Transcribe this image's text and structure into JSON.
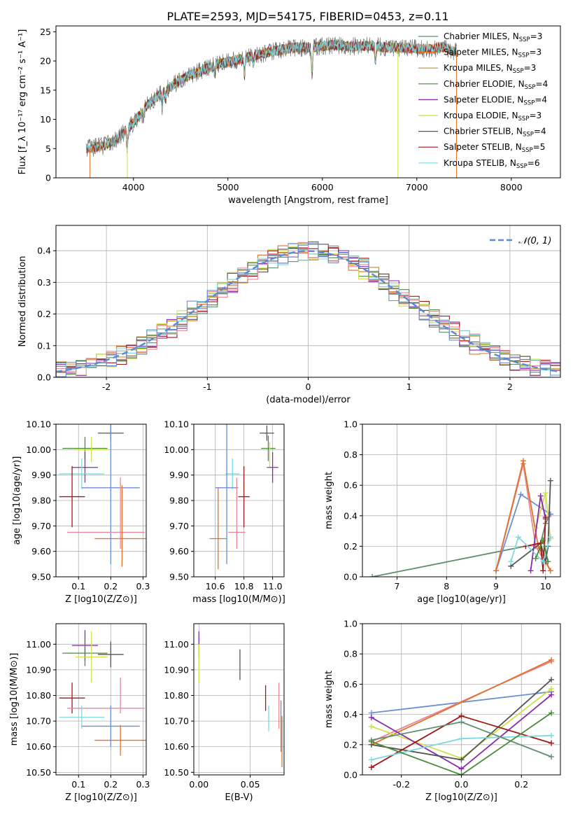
{
  "figure_title": "PLATE=2593, MJD=54175, FIBERID=0453, z=0.11",
  "chart_data": [
    {
      "id": "spectrum",
      "type": "line",
      "title": "PLATE=2593, MJD=54175, FIBERID=0453, z=0.11",
      "xlabel": "wavelength [Angstrom, rest frame]",
      "ylabel": "Flux [f_λ 10⁻¹⁷ erg cm⁻² s⁻¹ A⁻¹]",
      "xlim": [
        3180,
        8520
      ],
      "ylim": [
        0,
        26
      ],
      "xticks": [
        4000,
        5000,
        6000,
        7000,
        8000
      ],
      "yticks": [
        0,
        5,
        10,
        15,
        20,
        25
      ],
      "grid": false,
      "legend_position": "upper right",
      "continuum_x": [
        3500,
        3700,
        3850,
        3950,
        4050,
        4150,
        4300,
        4500,
        4700,
        4900,
        5100,
        5300,
        5500,
        5700,
        5900,
        6100,
        6300,
        6500,
        6700,
        6900,
        7100,
        7300,
        7420
      ],
      "continuum_y": [
        5.0,
        5.5,
        7.0,
        8.5,
        10.5,
        12.5,
        14.5,
        16.8,
        18.2,
        19.5,
        20.2,
        21.0,
        21.7,
        22.3,
        22.3,
        22.7,
        22.5,
        22.6,
        22.3,
        22.2,
        22.0,
        22.3,
        21.5
      ],
      "absorption_x": [
        3934,
        4102,
        4305,
        4340,
        4861,
        5175,
        5269,
        5890,
        6563
      ],
      "absorption_depth": [
        3.5,
        1.5,
        2.5,
        1.5,
        1.5,
        3.0,
        1.2,
        5.0,
        2.5
      ],
      "series": [
        {
          "name": "Chabrier MILES, N_SSP=3",
          "legend_base": "Chabrier MILES, N",
          "legend_n": "3",
          "color": "#5f8f6f",
          "xmin": 3500,
          "xmax": 7420
        },
        {
          "name": "Salpeter MILES, N_SSP=3",
          "legend_base": "Salpeter MILES, N",
          "legend_n": "3",
          "color": "#e0722a",
          "xmin": 3540,
          "xmax": 7420
        },
        {
          "name": "Kroupa MILES, N_SSP=3",
          "legend_base": "Kroupa MILES, N",
          "legend_n": "3",
          "color": "#c88a1e",
          "xmin": 3540,
          "xmax": 7420
        },
        {
          "name": "Chabrier ELODIE, N_SSP=4",
          "legend_base": "Chabrier ELODIE, N",
          "legend_n": "4",
          "color": "#4a8a3a",
          "xmin": 3900,
          "xmax": 6800
        },
        {
          "name": "Salpeter ELODIE, N_SSP=4",
          "legend_base": "Salpeter ELODIE, N",
          "legend_n": "4",
          "color": "#8a2aa8",
          "xmin": 3900,
          "xmax": 6800
        },
        {
          "name": "Kroupa ELODIE, N_SSP=3",
          "legend_base": "Kroupa ELODIE, N",
          "legend_n": "3",
          "color": "#cfe04a",
          "xmin": 3900,
          "xmax": 6800
        },
        {
          "name": "Chabrier STELIB, N_SSP=4",
          "legend_base": "Chabrier STELIB, N",
          "legend_n": "4",
          "color": "#555555",
          "xmin": 3500,
          "xmax": 7420
        },
        {
          "name": "Salpeter STELIB, N_SSP=5",
          "legend_base": "Salpeter STELIB, N",
          "legend_n": "5",
          "color": "#a01818",
          "xmin": 3500,
          "xmax": 7420
        },
        {
          "name": "Kroupa STELIB, N_SSP=6",
          "legend_base": "Kroupa STELIB, N",
          "legend_n": "6",
          "color": "#7fd8e0",
          "xmin": 3500,
          "xmax": 7420
        }
      ]
    },
    {
      "id": "residuals",
      "type": "histogram",
      "xlabel": "(data-model)/error",
      "ylabel": "Normed distribution",
      "xlim": [
        -2.5,
        2.5
      ],
      "ylim": [
        0,
        0.48
      ],
      "xticks": [
        -2,
        -1,
        0,
        1,
        2
      ],
      "yticks": [
        0.0,
        0.1,
        0.2,
        0.3,
        0.4
      ],
      "grid": true,
      "legend_position": "upper right",
      "bin_width": 0.1,
      "reference_curve": {
        "label": "𝒩(0, 1)",
        "mean": 0,
        "sigma": 1,
        "color": "#5b8bd6",
        "style": "dashed"
      },
      "series_colors": [
        "#5f8f6f",
        "#e0722a",
        "#c88a1e",
        "#4a8a3a",
        "#8a2aa8",
        "#cfe04a",
        "#555555",
        "#a01818",
        "#7fd8e0",
        "#e8879a",
        "#6b8ed6"
      ]
    },
    {
      "id": "age_vs_Z",
      "type": "errorbar",
      "xlabel": "Z [log10(Z/Z⊙)]",
      "ylabel": "age [log10(age/yr)]",
      "xlim": [
        0.03,
        0.31
      ],
      "ylim": [
        9.5,
        10.1
      ],
      "xticks": [
        0.1,
        0.2,
        0.3
      ],
      "yticks": [
        9.5,
        9.6,
        9.7,
        9.8,
        9.9,
        10.0,
        10.1
      ],
      "grid": true,
      "points": [
        {
          "x": 0.2,
          "xerr": 0.04,
          "y": 10.065,
          "yerr": 0.03,
          "color": "#555555"
        },
        {
          "x": 0.12,
          "xerr": 0.07,
          "y": 10.005,
          "yerr": 0.045,
          "color": "#4a8a3a"
        },
        {
          "x": 0.14,
          "xerr": 0.05,
          "y": 10.0,
          "yerr": 0.05,
          "color": "#cfe04a"
        },
        {
          "x": 0.12,
          "xerr": 0.04,
          "y": 9.93,
          "yerr": 0.06,
          "color": "#8a2aa8"
        },
        {
          "x": 0.11,
          "xerr": 0.07,
          "y": 9.905,
          "yerr": 0.06,
          "color": "#7fd8e0"
        },
        {
          "x": 0.2,
          "xerr": 0.09,
          "y": 9.85,
          "yerr": 0.3,
          "color": "#6b8ed6"
        },
        {
          "x": 0.08,
          "xerr": 0.04,
          "y": 9.815,
          "yerr": 0.12,
          "color": "#a01818"
        },
        {
          "x": 0.185,
          "xerr": 0.12,
          "y": 9.675,
          "yerr": 0.0,
          "color": "#e8879a"
        },
        {
          "x": 0.23,
          "xerr": 0.0,
          "y": 9.75,
          "yerr": 0.14,
          "color": "#e8879a"
        },
        {
          "x": 0.23,
          "xerr": 0.08,
          "y": 9.65,
          "yerr": 0.0,
          "color": "#e0722a"
        },
        {
          "x": 0.235,
          "xerr": 0.0,
          "y": 9.7,
          "yerr": 0.16,
          "color": "#e0722a"
        }
      ]
    },
    {
      "id": "age_vs_mass",
      "type": "errorbar",
      "xlabel": "mass [log10(M/M⊙)]",
      "ylabel": "",
      "xlim": [
        10.45,
        11.08
      ],
      "ylim": [
        9.5,
        10.1
      ],
      "xticks": [
        10.6,
        10.8,
        11.0
      ],
      "yticks": [
        9.5,
        9.6,
        9.7,
        9.8,
        9.9,
        10.0,
        10.1
      ],
      "grid": true,
      "points": [
        {
          "x": 10.96,
          "xerr": 0.05,
          "y": 10.065,
          "yerr": 0.03,
          "color": "#555555"
        },
        {
          "x": 10.97,
          "xerr": 0.05,
          "y": 10.005,
          "yerr": 0.05,
          "color": "#4a8a3a"
        },
        {
          "x": 10.98,
          "xerr": 0.0,
          "y": 9.98,
          "yerr": 0.05,
          "color": "#cfe04a"
        },
        {
          "x": 11.0,
          "xerr": 0.04,
          "y": 9.93,
          "yerr": 0.06,
          "color": "#8a2aa8"
        },
        {
          "x": 10.72,
          "xerr": 0.05,
          "y": 9.905,
          "yerr": 0.06,
          "color": "#7fd8e0"
        },
        {
          "x": 10.68,
          "xerr": 0.08,
          "y": 9.85,
          "yerr": 0.3,
          "color": "#6b8ed6"
        },
        {
          "x": 10.8,
          "xerr": 0.04,
          "y": 9.815,
          "yerr": 0.12,
          "color": "#a01818"
        },
        {
          "x": 10.75,
          "xerr": 0.06,
          "y": 9.675,
          "yerr": 0.0,
          "color": "#e8879a"
        },
        {
          "x": 10.75,
          "xerr": 0.0,
          "y": 9.75,
          "yerr": 0.14,
          "color": "#e8879a"
        },
        {
          "x": 10.62,
          "xerr": 0.06,
          "y": 9.65,
          "yerr": 0.0,
          "color": "#e0722a"
        },
        {
          "x": 10.62,
          "xerr": 0.0,
          "y": 9.69,
          "yerr": 0.16,
          "color": "#e0722a"
        }
      ]
    },
    {
      "id": "massweight_vs_age",
      "type": "line",
      "xlabel": "age [log10(age/yr)]",
      "ylabel": "mass weight",
      "xlim": [
        6.3,
        10.3
      ],
      "ylim": [
        0,
        1.0
      ],
      "xticks": [
        7,
        8,
        9,
        10
      ],
      "yticks": [
        0.0,
        0.2,
        0.4,
        0.6,
        0.8,
        1.0
      ],
      "grid": true,
      "series": [
        {
          "color": "#5f8f6f",
          "x": [
            6.5,
            9.9,
            10.0,
            10.1
          ],
          "y": [
            0.0,
            0.22,
            0.35,
            0.41
          ]
        },
        {
          "color": "#6b8ed6",
          "x": [
            9.0,
            9.5,
            10.1
          ],
          "y": [
            0.04,
            0.54,
            0.41
          ]
        },
        {
          "color": "#e8879a",
          "x": [
            9.0,
            9.55,
            9.8,
            10.1
          ],
          "y": [
            0.04,
            0.74,
            0.2,
            0.04
          ]
        },
        {
          "color": "#e0722a",
          "x": [
            9.0,
            9.55,
            9.85,
            10.1
          ],
          "y": [
            0.04,
            0.76,
            0.2,
            0.04
          ]
        },
        {
          "color": "#cfe04a",
          "x": [
            9.8,
            10.0,
            10.1
          ],
          "y": [
            0.32,
            0.55,
            0.25
          ]
        },
        {
          "color": "#8a2aa8",
          "x": [
            9.7,
            9.9,
            10.0
          ],
          "y": [
            0.04,
            0.53,
            0.38
          ]
        },
        {
          "color": "#555555",
          "x": [
            9.3,
            9.9,
            10.0,
            10.05,
            10.1
          ],
          "y": [
            0.07,
            0.22,
            0.1,
            0.2,
            0.63
          ]
        },
        {
          "color": "#a01818",
          "x": [
            9.6,
            9.9,
            9.95,
            10.0
          ],
          "y": [
            0.2,
            0.22,
            0.04,
            0.39
          ]
        },
        {
          "color": "#7fd8e0",
          "x": [
            9.3,
            9.45,
            9.95,
            10.1
          ],
          "y": [
            0.1,
            0.26,
            0.1,
            0.26
          ]
        },
        {
          "color": "#4a8a3a",
          "x": [
            9.8,
            9.95,
            10.05
          ],
          "y": [
            0.12,
            0.24,
            0.1
          ]
        }
      ]
    },
    {
      "id": "mass_vs_Z",
      "type": "errorbar",
      "xlabel": "Z [log10(Z/Z⊙)]",
      "ylabel": "mass [log10(M/M⊙)]",
      "xlim": [
        0.03,
        0.31
      ],
      "ylim": [
        10.49,
        11.08
      ],
      "xticks": [
        0.1,
        0.2,
        0.3
      ],
      "yticks": [
        10.5,
        10.6,
        10.7,
        10.8,
        10.9,
        11.0
      ],
      "grid": true,
      "points": [
        {
          "x": 0.12,
          "xerr": 0.04,
          "y": 10.995,
          "yerr": 0.06,
          "color": "#8a2aa8"
        },
        {
          "x": 0.12,
          "xerr": 0.07,
          "y": 10.965,
          "yerr": 0.05,
          "color": "#4a8a3a"
        },
        {
          "x": 0.2,
          "xerr": 0.04,
          "y": 10.96,
          "yerr": 0.05,
          "color": "#555555"
        },
        {
          "x": 0.14,
          "xerr": 0.05,
          "y": 10.95,
          "yerr": 0.1,
          "color": "#cfe04a"
        },
        {
          "x": 0.08,
          "xerr": 0.04,
          "y": 10.79,
          "yerr": 0.06,
          "color": "#a01818"
        },
        {
          "x": 0.23,
          "xerr": 0.0,
          "y": 10.8,
          "yerr": 0.07,
          "color": "#e8879a"
        },
        {
          "x": 0.185,
          "xerr": 0.12,
          "y": 10.75,
          "yerr": 0.0,
          "color": "#e8879a"
        },
        {
          "x": 0.11,
          "xerr": 0.07,
          "y": 10.715,
          "yerr": 0.045,
          "color": "#7fd8e0"
        },
        {
          "x": 0.2,
          "xerr": 0.09,
          "y": 10.68,
          "yerr": 0.08,
          "color": "#6b8ed6"
        },
        {
          "x": 0.23,
          "xerr": 0.08,
          "y": 10.625,
          "yerr": 0.06,
          "color": "#e0722a"
        }
      ]
    },
    {
      "id": "mass_vs_EBV",
      "type": "errorbar",
      "xlabel": "E(B-V)",
      "ylabel": "",
      "xlim": [
        -0.005,
        0.083
      ],
      "ylim": [
        10.49,
        11.08
      ],
      "xticks": [
        0.0,
        0.05
      ],
      "yticks": [
        10.5,
        10.6,
        10.7,
        10.8,
        10.9,
        11.0
      ],
      "grid": true,
      "points": [
        {
          "x": 0.0,
          "xerr": 0.0,
          "y": 11.0,
          "yerr": 0.05,
          "color": "#8a2aa8"
        },
        {
          "x": 0.0,
          "xerr": 0.0,
          "y": 10.925,
          "yerr": 0.075,
          "color": "#cfe04a"
        },
        {
          "x": 0.04,
          "xerr": 0.0,
          "y": 10.92,
          "yerr": 0.06,
          "color": "#555555"
        },
        {
          "x": 0.065,
          "xerr": 0.0,
          "y": 10.79,
          "yerr": 0.05,
          "color": "#a01818"
        },
        {
          "x": 0.078,
          "xerr": 0.0,
          "y": 10.76,
          "yerr": 0.09,
          "color": "#e8879a"
        },
        {
          "x": 0.068,
          "xerr": 0.0,
          "y": 10.71,
          "yerr": 0.05,
          "color": "#7fd8e0"
        },
        {
          "x": 0.08,
          "xerr": 0.0,
          "y": 10.68,
          "yerr": 0.1,
          "color": "#6b8ed6"
        },
        {
          "x": 0.081,
          "xerr": 0.0,
          "y": 10.62,
          "yerr": 0.1,
          "color": "#e0722a"
        }
      ]
    },
    {
      "id": "massweight_vs_Z",
      "type": "line",
      "xlabel": "Z [log10(Z/Z⊙)]",
      "ylabel": "mass weight",
      "xlim": [
        -0.33,
        0.33
      ],
      "ylim": [
        0,
        1.0
      ],
      "xticks": [
        -0.2,
        0.0,
        0.2
      ],
      "yticks": [
        0.0,
        0.2,
        0.4,
        0.6,
        0.8,
        1.0
      ],
      "grid": true,
      "series": [
        {
          "color": "#6b8ed6",
          "x": [
            -0.3,
            0.3
          ],
          "y": [
            0.41,
            0.55
          ]
        },
        {
          "color": "#e8879a",
          "x": [
            -0.3,
            0.3
          ],
          "y": [
            0.22,
            0.75
          ]
        },
        {
          "color": "#e0722a",
          "x": [
            -0.3,
            0.3
          ],
          "y": [
            0.2,
            0.76
          ]
        },
        {
          "color": "#cfe04a",
          "x": [
            -0.3,
            0.0,
            0.3
          ],
          "y": [
            0.32,
            0.11,
            0.57
          ]
        },
        {
          "color": "#8a2aa8",
          "x": [
            -0.3,
            0.0,
            0.3
          ],
          "y": [
            0.38,
            0.04,
            0.53
          ]
        },
        {
          "color": "#555555",
          "x": [
            -0.3,
            0.0,
            0.3
          ],
          "y": [
            0.2,
            0.1,
            0.63
          ]
        },
        {
          "color": "#a01818",
          "x": [
            -0.3,
            0.0,
            0.3
          ],
          "y": [
            0.05,
            0.39,
            0.21
          ]
        },
        {
          "color": "#7fd8e0",
          "x": [
            -0.3,
            0.0,
            0.3
          ],
          "y": [
            0.1,
            0.24,
            0.26
          ]
        },
        {
          "color": "#5f8f6f",
          "x": [
            -0.3,
            0.0,
            0.3
          ],
          "y": [
            0.23,
            0.35,
            0.12
          ]
        },
        {
          "color": "#4a8a3a",
          "x": [
            -0.3,
            0.0,
            0.3
          ],
          "y": [
            0.22,
            0.0,
            0.41
          ]
        }
      ]
    }
  ]
}
